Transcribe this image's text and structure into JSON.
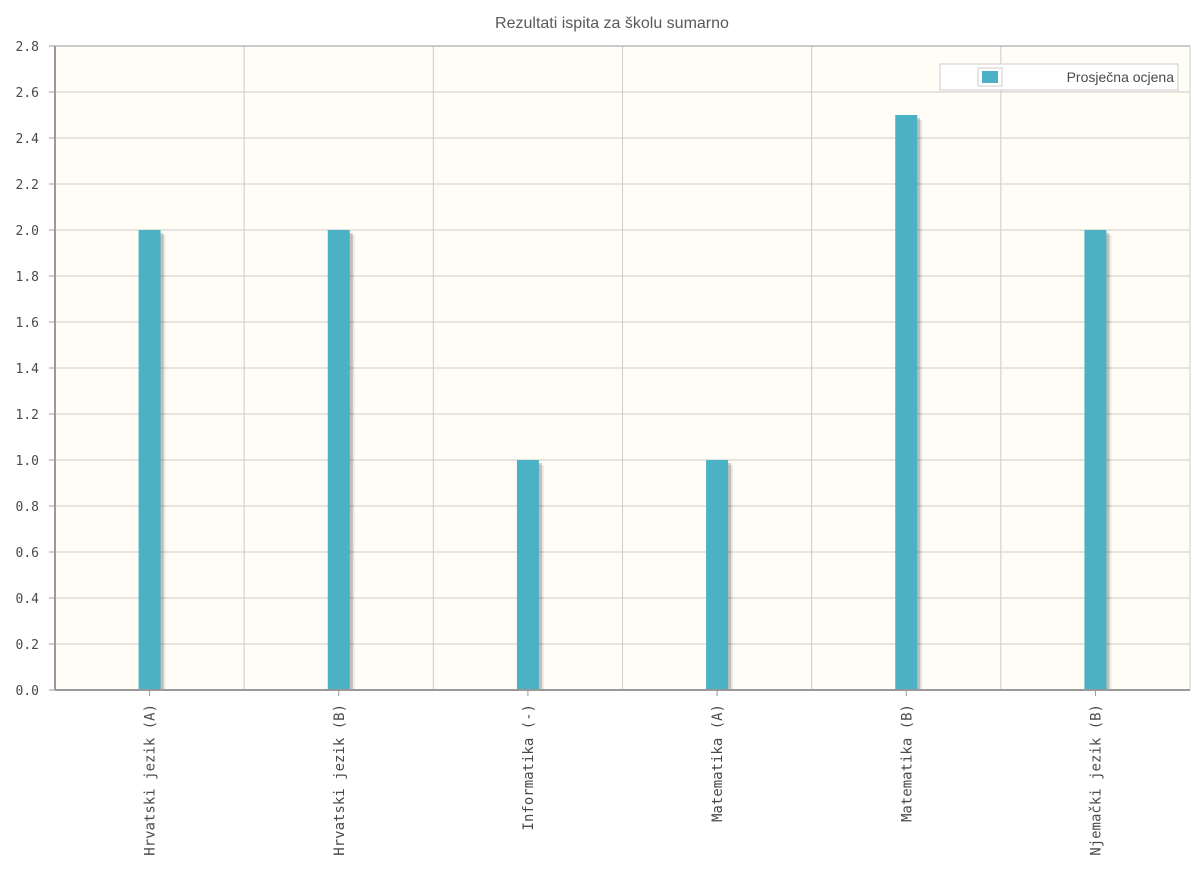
{
  "chart_data": {
    "type": "bar",
    "title": "Rezultati ispita za školu sumarno",
    "xlabel": "",
    "ylabel": "",
    "categories": [
      "Hrvatski jezik (A)",
      "Hrvatski jezik (B)",
      "Informatika (-)",
      "Matematika (A)",
      "Matematika (B)",
      "Njemački jezik (B)"
    ],
    "series": [
      {
        "name": "Prosječna ocjena",
        "values": [
          2.0,
          2.0,
          1.0,
          1.0,
          2.5,
          2.0
        ]
      }
    ],
    "ylim": [
      0,
      2.8
    ],
    "yticks": [
      "0.0",
      "0.2",
      "0.4",
      "0.6",
      "0.8",
      "1.0",
      "1.2",
      "1.4",
      "1.6",
      "1.8",
      "2.0",
      "2.2",
      "2.4",
      "2.6",
      "2.8"
    ],
    "grid": true,
    "legend_position": "top-right",
    "colors": {
      "bar": "#4bb2c5",
      "plot_background": "#fffdf6",
      "grid": "#cccccc",
      "axis": "#999999"
    }
  }
}
